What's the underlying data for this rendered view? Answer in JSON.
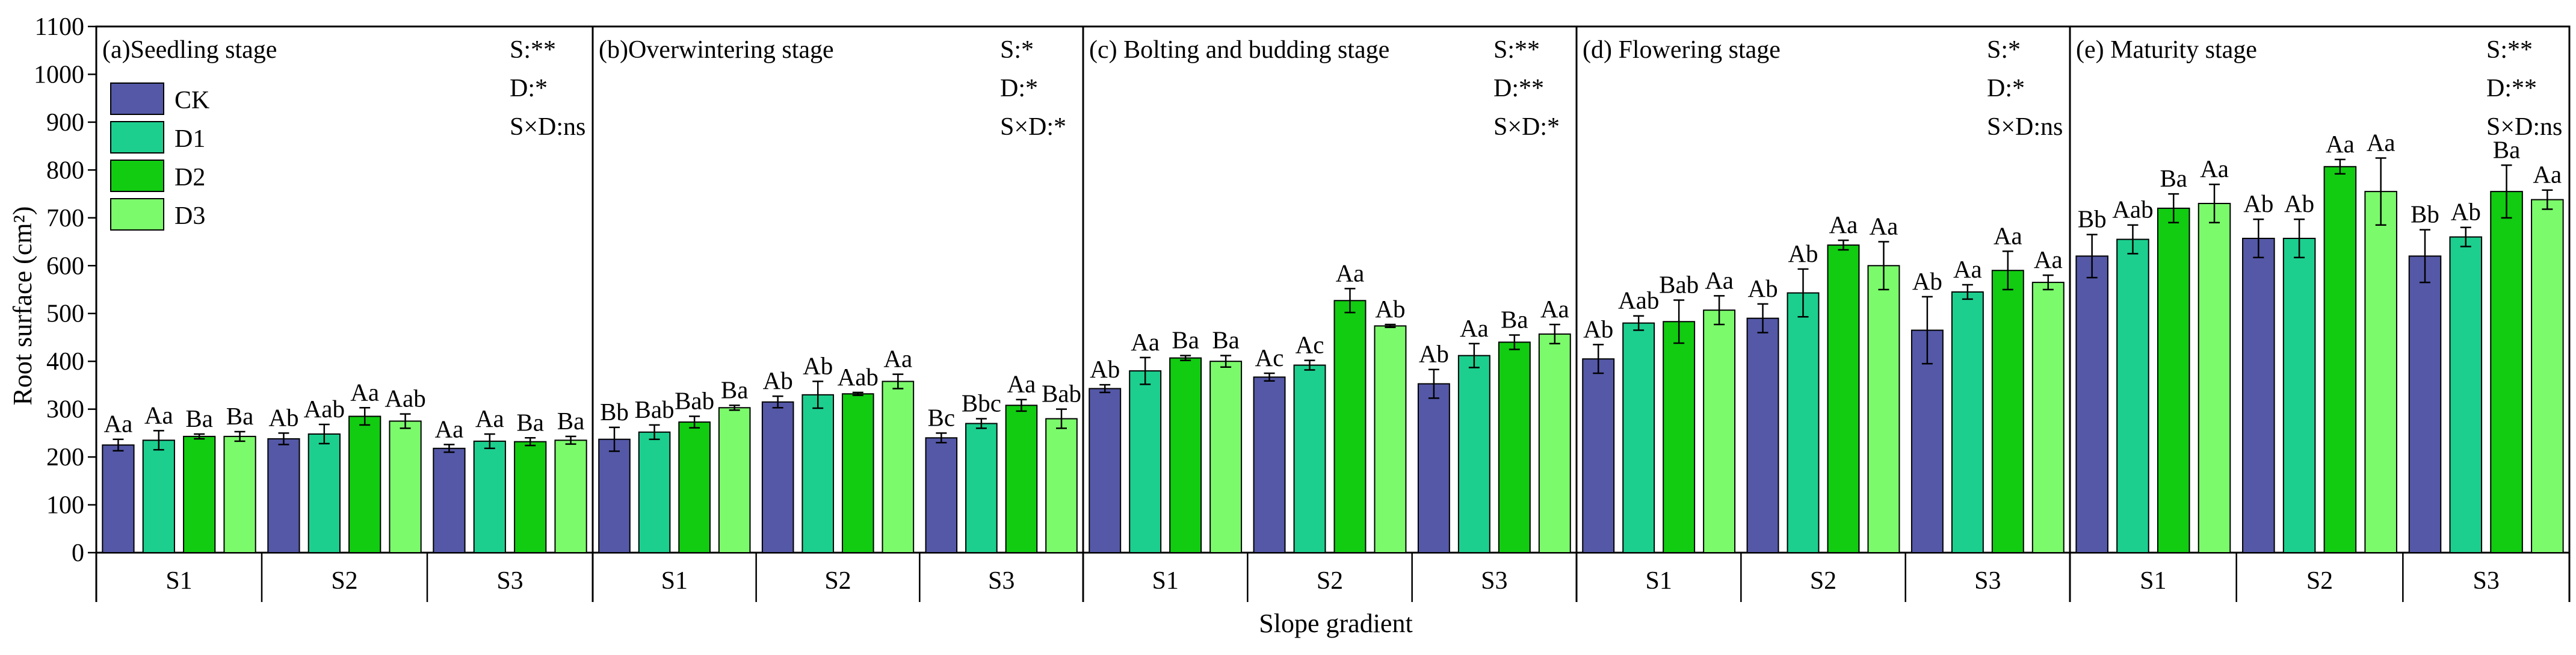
{
  "chart_data": {
    "type": "bar",
    "ylabel": "Root surface (cm²)",
    "xlabel": "Slope gradient",
    "ylim": [
      0,
      1100
    ],
    "yticks": [
      0,
      100,
      200,
      300,
      400,
      500,
      600,
      700,
      800,
      900,
      1000,
      1100
    ],
    "groups": [
      "S1",
      "S2",
      "S3"
    ],
    "series_names": [
      "CK",
      "D1",
      "D2",
      "D3"
    ],
    "series_colors": [
      "#5458a7",
      "#1ccf8f",
      "#11cc11",
      "#7bfb6b"
    ],
    "legend": {
      "placement": "top-left of panel (a)",
      "entries": [
        {
          "label": "CK",
          "color": "#5458a7"
        },
        {
          "label": "D1",
          "color": "#1ccf8f"
        },
        {
          "label": "D2",
          "color": "#11cc11"
        },
        {
          "label": "D3",
          "color": "#7bfb6b"
        }
      ]
    },
    "panels": [
      {
        "title": "(a)Seedling stage",
        "stats": [
          "S:**",
          "D:*",
          "S×D:ns"
        ],
        "values": [
          [
            225,
            235,
            243,
            243
          ],
          [
            238,
            248,
            285,
            275
          ],
          [
            218,
            233,
            232,
            235
          ]
        ],
        "errors": [
          [
            12,
            20,
            5,
            10
          ],
          [
            12,
            20,
            18,
            15
          ],
          [
            8,
            15,
            8,
            8
          ]
        ],
        "labels": [
          [
            "Aa",
            "Aa",
            "Ba",
            "Ba"
          ],
          [
            "Ab",
            "Aab",
            "Aa",
            "Aab"
          ],
          [
            "Aa",
            "Aa",
            "Ba",
            "Ba"
          ]
        ]
      },
      {
        "title": "(b)Overwintering stage",
        "stats": [
          "S:*",
          "D:*",
          "S×D:*"
        ],
        "values": [
          [
            237,
            252,
            273,
            303
          ],
          [
            315,
            330,
            332,
            358
          ],
          [
            240,
            270,
            308,
            280
          ]
        ],
        "errors": [
          [
            25,
            15,
            12,
            5
          ],
          [
            12,
            28,
            3,
            15
          ],
          [
            10,
            10,
            12,
            20
          ]
        ],
        "labels": [
          [
            "Bb",
            "Bab",
            "Bab",
            "Ba"
          ],
          [
            "Ab",
            "Ab",
            "Aab",
            "Aa"
          ],
          [
            "Bc",
            "Bbc",
            "Aa",
            "Bab"
          ]
        ]
      },
      {
        "title": "(c) Bolting and budding stage",
        "stats": [
          "S:**",
          "D:**",
          "S×D:*"
        ],
        "values": [
          [
            343,
            380,
            407,
            400
          ],
          [
            367,
            392,
            527,
            474
          ],
          [
            353,
            412,
            440,
            457
          ]
        ],
        "errors": [
          [
            8,
            28,
            5,
            12
          ],
          [
            8,
            10,
            25,
            3
          ],
          [
            30,
            25,
            15,
            20
          ]
        ],
        "labels": [
          [
            "Ab",
            "Aa",
            "Ba",
            "Ba"
          ],
          [
            "Ac",
            "Ac",
            "Aa",
            "Ab"
          ],
          [
            "Ab",
            "Aa",
            "Ba",
            "Aa"
          ]
        ]
      },
      {
        "title": "(d) Flowering stage",
        "stats": [
          "S:*",
          "D:*",
          "S×D:ns"
        ],
        "values": [
          [
            405,
            480,
            483,
            507
          ],
          [
            490,
            543,
            643,
            600
          ],
          [
            465,
            545,
            590,
            565
          ]
        ],
        "errors": [
          [
            30,
            15,
            45,
            30
          ],
          [
            30,
            50,
            10,
            50
          ],
          [
            70,
            15,
            40,
            15
          ]
        ],
        "labels": [
          [
            "Ab",
            "Aab",
            "Bab",
            "Aa"
          ],
          [
            "Ab",
            "Ab",
            "Aa",
            "Aa"
          ],
          [
            "Ab",
            "Aa",
            "Aa",
            "Aa"
          ]
        ]
      },
      {
        "title": "(e) Maturity stage",
        "stats": [
          "S:**",
          "D:**",
          "S×D:ns"
        ],
        "values": [
          [
            620,
            655,
            720,
            730
          ],
          [
            657,
            657,
            807,
            755
          ],
          [
            620,
            660,
            755,
            738
          ]
        ],
        "errors": [
          [
            45,
            30,
            30,
            40
          ],
          [
            40,
            40,
            15,
            70
          ],
          [
            55,
            20,
            55,
            20
          ]
        ],
        "labels": [
          [
            "Bb",
            "Aab",
            "Ba",
            "Aa"
          ],
          [
            "Ab",
            "Ab",
            "Aa",
            "Aa"
          ],
          [
            "Bb",
            "Ab",
            "Ba",
            "Aa"
          ]
        ]
      }
    ]
  }
}
